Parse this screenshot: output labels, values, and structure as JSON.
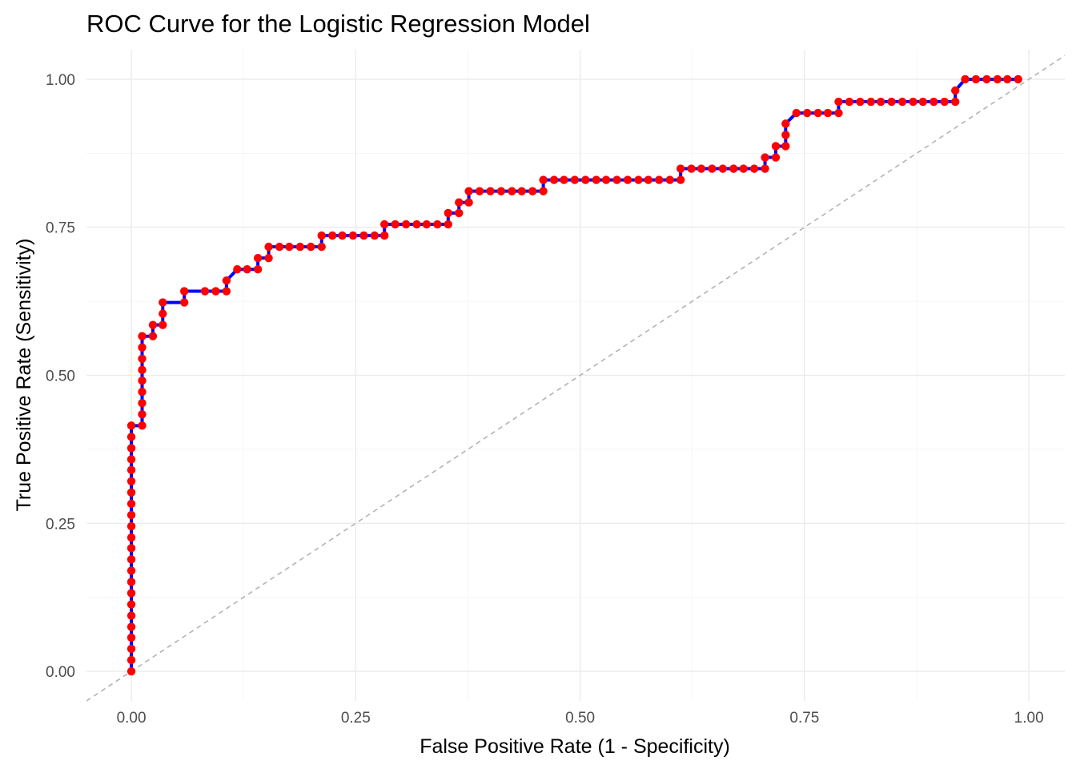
{
  "chart_data": {
    "type": "line",
    "title": "ROC Curve for the Logistic Regression Model",
    "xlabel": "False Positive Rate (1 - Specificity)",
    "ylabel": "True Positive Rate (Sensitivity)",
    "xlim": [
      -0.05,
      1.04
    ],
    "ylim": [
      -0.05,
      1.05
    ],
    "x_ticks": [
      0,
      0.25,
      0.5,
      0.75,
      1
    ],
    "x_tick_labels": [
      "0.00",
      "0.25",
      "0.50",
      "0.75",
      "1.00"
    ],
    "y_ticks": [
      0,
      0.25,
      0.5,
      0.75,
      1
    ],
    "y_tick_labels": [
      "0.00",
      "0.25",
      "0.50",
      "0.75",
      "1.00"
    ],
    "grid": true,
    "legend": "none",
    "colors": {
      "line": "#0000ff",
      "points": "#ff0000",
      "diagonal": "#b3b3b3"
    },
    "reference_line": {
      "style": "dashed",
      "x": [
        -0.05,
        1.04
      ],
      "y": [
        -0.05,
        1.04
      ]
    },
    "series": [
      {
        "x": [
          0,
          0,
          0,
          0,
          0,
          0,
          0,
          0,
          0,
          0,
          0,
          0,
          0,
          0,
          0,
          0,
          0,
          0,
          0,
          0,
          0,
          0,
          0,
          0.012,
          0.012,
          0.012,
          0.012,
          0.012,
          0.012,
          0.012,
          0.012,
          0.012,
          0.024,
          0.024,
          0.035,
          0.035,
          0.035,
          0.059,
          0.059,
          0.082,
          0.094,
          0.106,
          0.106,
          0.118,
          0.129,
          0.141,
          0.141,
          0.153,
          0.153,
          0.165,
          0.176,
          0.188,
          0.2,
          0.212,
          0.212,
          0.224,
          0.235,
          0.247,
          0.259,
          0.271,
          0.282,
          0.282,
          0.294,
          0.306,
          0.318,
          0.329,
          0.341,
          0.353,
          0.353,
          0.365,
          0.365,
          0.376,
          0.376,
          0.388,
          0.4,
          0.412,
          0.424,
          0.435,
          0.447,
          0.459,
          0.459,
          0.471,
          0.482,
          0.494,
          0.506,
          0.518,
          0.529,
          0.541,
          0.553,
          0.565,
          0.576,
          0.588,
          0.6,
          0.612,
          0.612,
          0.624,
          0.635,
          0.647,
          0.659,
          0.671,
          0.682,
          0.694,
          0.706,
          0.706,
          0.718,
          0.718,
          0.729,
          0.729,
          0.729,
          0.741,
          0.753,
          0.765,
          0.776,
          0.788,
          0.788,
          0.8,
          0.812,
          0.824,
          0.835,
          0.847,
          0.859,
          0.871,
          0.882,
          0.894,
          0.906,
          0.918,
          0.918,
          0.929,
          0.941,
          0.953,
          0.965,
          0.976,
          0.988
        ],
        "y": [
          0,
          0.019,
          0.038,
          0.057,
          0.075,
          0.094,
          0.113,
          0.132,
          0.151,
          0.17,
          0.189,
          0.208,
          0.226,
          0.245,
          0.264,
          0.283,
          0.302,
          0.321,
          0.34,
          0.358,
          0.377,
          0.396,
          0.415,
          0.415,
          0.434,
          0.453,
          0.472,
          0.491,
          0.509,
          0.528,
          0.547,
          0.566,
          0.566,
          0.585,
          0.585,
          0.604,
          0.623,
          0.623,
          0.642,
          0.642,
          0.642,
          0.642,
          0.66,
          0.679,
          0.679,
          0.679,
          0.698,
          0.698,
          0.717,
          0.717,
          0.717,
          0.717,
          0.717,
          0.717,
          0.736,
          0.736,
          0.736,
          0.736,
          0.736,
          0.736,
          0.736,
          0.755,
          0.755,
          0.755,
          0.755,
          0.755,
          0.755,
          0.755,
          0.774,
          0.774,
          0.792,
          0.792,
          0.811,
          0.811,
          0.811,
          0.811,
          0.811,
          0.811,
          0.811,
          0.811,
          0.83,
          0.83,
          0.83,
          0.83,
          0.83,
          0.83,
          0.83,
          0.83,
          0.83,
          0.83,
          0.83,
          0.83,
          0.83,
          0.83,
          0.849,
          0.849,
          0.849,
          0.849,
          0.849,
          0.849,
          0.849,
          0.849,
          0.849,
          0.868,
          0.868,
          0.887,
          0.887,
          0.906,
          0.925,
          0.943,
          0.943,
          0.943,
          0.943,
          0.943,
          0.962,
          0.962,
          0.962,
          0.962,
          0.962,
          0.962,
          0.962,
          0.962,
          0.962,
          0.962,
          0.962,
          0.962,
          0.981,
          1,
          1,
          1,
          1,
          1,
          1
        ]
      }
    ]
  }
}
